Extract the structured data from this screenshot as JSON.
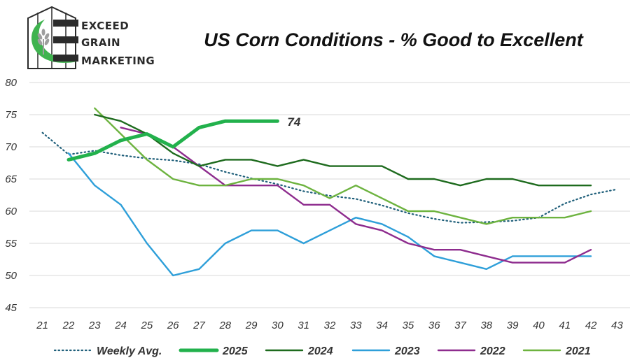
{
  "logo": {
    "line1": "EXCEED",
    "line2": "GRAIN",
    "line3": "MARKETING",
    "icon": "grain-silo-wheat-icon",
    "brand_green": "#3fb34f"
  },
  "chart_data": {
    "type": "line",
    "title": "US Corn Conditions - % Good to Excellent",
    "xlabel": "",
    "ylabel": "",
    "x_ticks": [
      21,
      22,
      23,
      24,
      25,
      26,
      27,
      28,
      29,
      30,
      31,
      32,
      33,
      34,
      35,
      36,
      37,
      38,
      39,
      40,
      41,
      42,
      43
    ],
    "y_ticks": [
      45,
      50,
      55,
      60,
      65,
      70,
      75,
      80
    ],
    "xlim": [
      20.5,
      43.5
    ],
    "ylim": [
      45,
      80
    ],
    "grid": "horizontal",
    "legend_position": "bottom",
    "series": [
      {
        "name": "Weekly Avg.",
        "color": "#1f5f7a",
        "style": "dotted",
        "x": [
          21,
          22,
          23,
          24,
          25,
          26,
          27,
          28,
          29,
          30,
          31,
          32,
          33,
          34,
          35,
          36,
          37,
          38,
          39,
          40,
          41,
          42,
          43
        ],
        "y": [
          72.2,
          68.8,
          69.4,
          68.7,
          68.2,
          67.9,
          67.3,
          66.1,
          65.1,
          64.2,
          63.1,
          62.4,
          61.9,
          60.9,
          59.7,
          58.8,
          58.2,
          58.3,
          58.5,
          59.0,
          61.2,
          62.6,
          63.4
        ]
      },
      {
        "name": "2025",
        "color": "#22b14c",
        "style": "thick",
        "x": [
          22,
          23,
          24,
          25,
          26,
          27,
          28,
          29,
          30
        ],
        "y": [
          68,
          69,
          71,
          72,
          70,
          73,
          74,
          74,
          74
        ],
        "end_label": "74"
      },
      {
        "name": "2024",
        "color": "#1e6b1e",
        "style": "solid",
        "x": [
          23,
          24,
          25,
          26,
          27,
          28,
          29,
          30,
          31,
          32,
          33,
          34,
          35,
          36,
          37,
          38,
          39,
          40,
          41,
          42
        ],
        "y": [
          75,
          74,
          72,
          69,
          67,
          68,
          68,
          67,
          68,
          67,
          67,
          67,
          65,
          65,
          64,
          65,
          65,
          64,
          64,
          64
        ]
      },
      {
        "name": "2023",
        "color": "#2e9fd9",
        "style": "solid",
        "x": [
          22,
          23,
          24,
          25,
          26,
          27,
          28,
          29,
          30,
          31,
          32,
          33,
          34,
          35,
          36,
          37,
          38,
          39,
          40,
          41,
          42
        ],
        "y": [
          69,
          64,
          61,
          55,
          50,
          51,
          55,
          57,
          57,
          55,
          57,
          59,
          58,
          56,
          53,
          52,
          51,
          53,
          53,
          53,
          53
        ]
      },
      {
        "name": "2022",
        "color": "#8e2c8e",
        "style": "solid",
        "x": [
          24,
          25,
          26,
          27,
          28,
          29,
          30,
          31,
          32,
          33,
          34,
          35,
          36,
          37,
          38,
          39,
          40,
          41,
          42
        ],
        "y": [
          73,
          72,
          70,
          67,
          64,
          64,
          64,
          61,
          61,
          58,
          57,
          55,
          54,
          54,
          53,
          52,
          52,
          52,
          54
        ]
      },
      {
        "name": "2021",
        "color": "#6db33f",
        "style": "solid",
        "x": [
          23,
          24,
          25,
          26,
          27,
          28,
          29,
          30,
          31,
          32,
          33,
          34,
          35,
          36,
          37,
          38,
          39,
          40,
          41,
          42
        ],
        "y": [
          76,
          72,
          68,
          65,
          64,
          64,
          65,
          65,
          64,
          62,
          64,
          62,
          60,
          60,
          59,
          58,
          59,
          59,
          59,
          60
        ]
      }
    ]
  }
}
